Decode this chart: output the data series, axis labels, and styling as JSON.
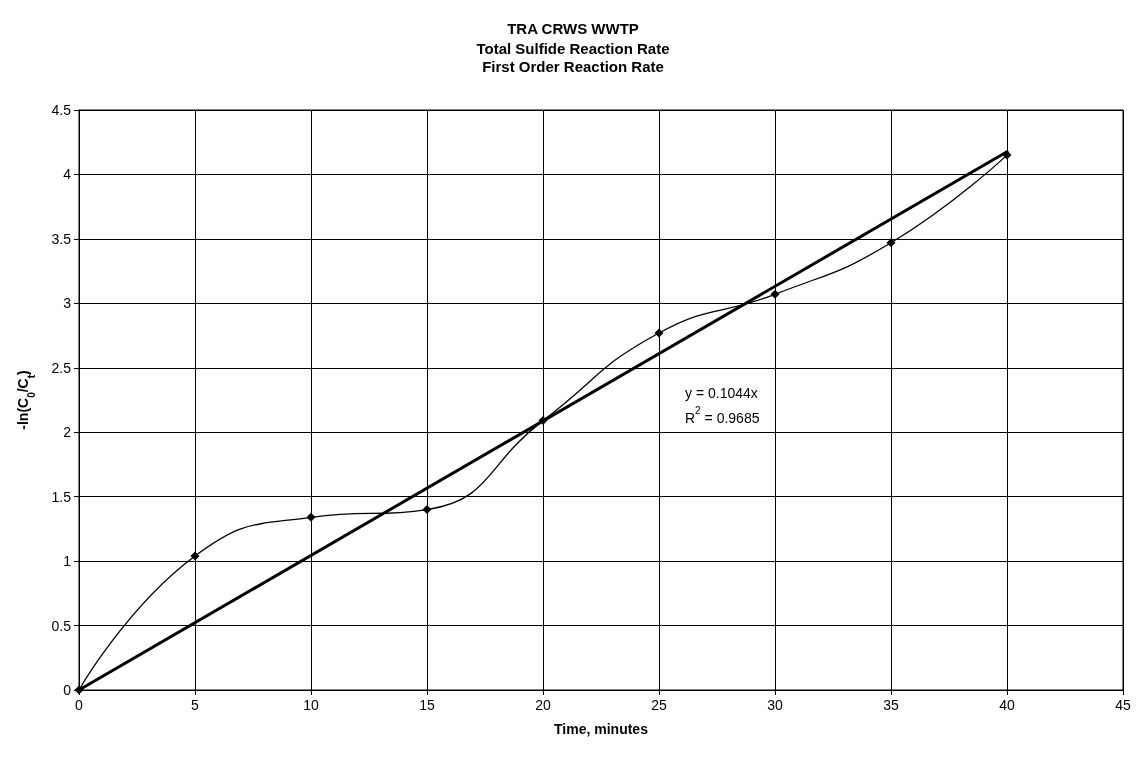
{
  "chart_data": {
    "type": "line",
    "title": "TRA CRWS WWTP",
    "subtitle": "Total Sulfide Reaction Rate\nFirst Order Reaction Rate",
    "xlabel": "Time, minutes",
    "ylabel": "-ln(C$_{0}$/C$_{t}$)",
    "x": [
      0,
      5,
      10,
      15,
      20,
      25,
      30,
      35,
      40
    ],
    "series": [
      {
        "color": "#000000",
        "values": [
          0,
          1.04,
          1.34,
          1.4,
          2.09,
          2.77,
          3.07,
          3.47,
          4.15
        ]
      },
      {
        "type": "line",
        "marker": "none",
        "color": "#000000",
        "x": [
          0,
          40
        ],
        "values": [
          0,
          4.176
        ]
      }
    ],
    "annotations": [
      "y = 0.1044x",
      "R$^{2}$ = 0.9685"
    ],
    "xlim": [
      0,
      45
    ],
    "xticks": [
      0,
      5,
      10,
      15,
      20,
      25,
      30,
      35,
      40,
      45
    ],
    "ylim": [
      0,
      4.5
    ],
    "yticks": [
      0,
      0.5,
      1,
      1.5,
      2,
      2.5,
      3,
      3.5,
      4,
      4.5
    ],
    "grid": true,
    "marker": "diamond",
    "line_style": "solid"
  }
}
